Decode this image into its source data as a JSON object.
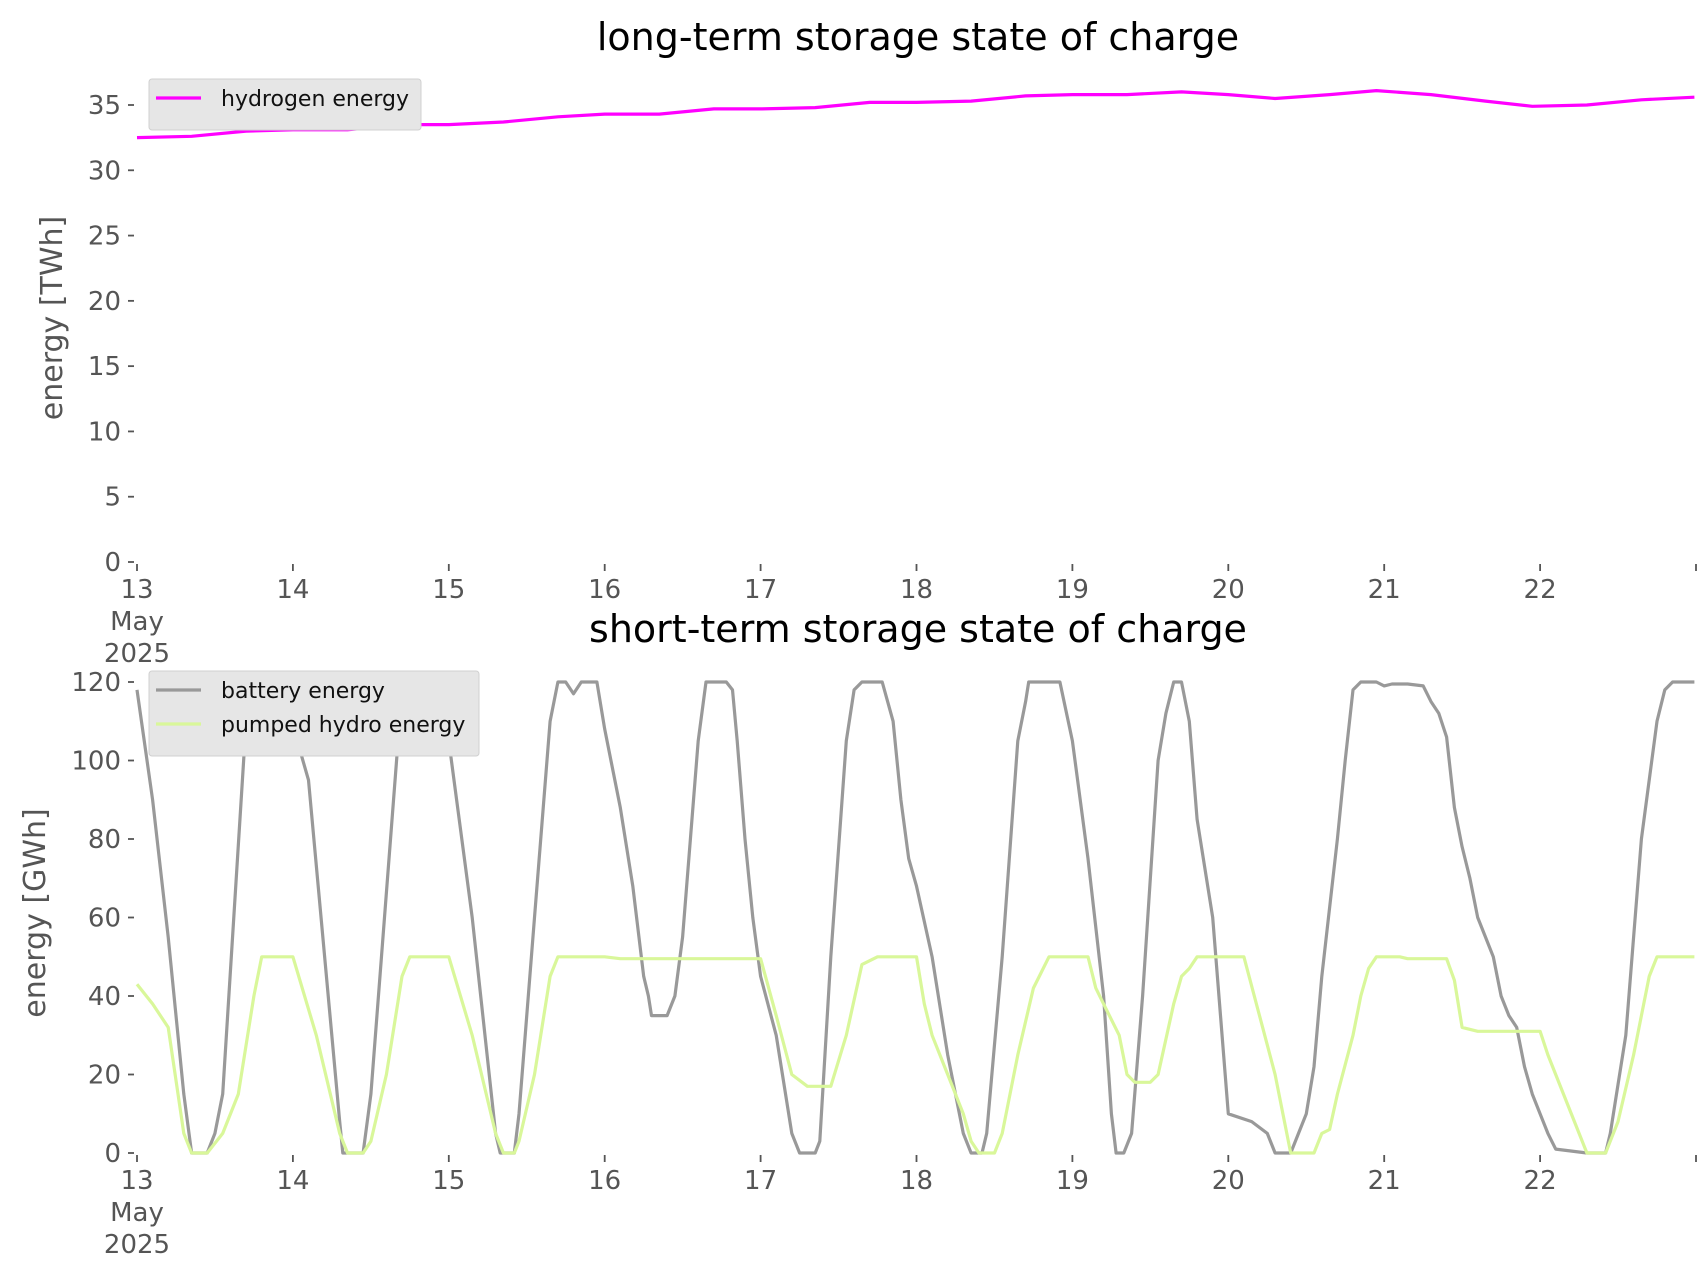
{
  "chart_data": [
    {
      "type": "line",
      "title": "long-term storage state of charge",
      "xlabel": "",
      "ylabel": "energy [TWh]",
      "ylim": [
        0,
        37
      ],
      "yticks": [
        0,
        5,
        10,
        15,
        20,
        25,
        30,
        35
      ],
      "xlim": [
        "2025-05-13T00:00",
        "2025-05-22T23:00"
      ],
      "xticks": [
        "13",
        "14",
        "15",
        "16",
        "17",
        "18",
        "19",
        "20",
        "21",
        "22"
      ],
      "xtick_first_extra": [
        "May",
        "2025"
      ],
      "legend": "top-left",
      "grid": false,
      "x_unit": "day of May 2025",
      "series": [
        {
          "name": "hydrogen energy",
          "color": "#ff00ff",
          "points": [
            [
              13.0,
              32.5
            ],
            [
              13.35,
              32.6
            ],
            [
              13.7,
              33.0
            ],
            [
              14.0,
              33.1
            ],
            [
              14.35,
              33.1
            ],
            [
              14.7,
              33.5
            ],
            [
              15.0,
              33.5
            ],
            [
              15.35,
              33.7
            ],
            [
              15.7,
              34.1
            ],
            [
              16.0,
              34.3
            ],
            [
              16.35,
              34.3
            ],
            [
              16.7,
              34.7
            ],
            [
              17.0,
              34.7
            ],
            [
              17.35,
              34.8
            ],
            [
              17.7,
              35.2
            ],
            [
              18.0,
              35.2
            ],
            [
              18.35,
              35.3
            ],
            [
              18.7,
              35.7
            ],
            [
              19.0,
              35.8
            ],
            [
              19.35,
              35.8
            ],
            [
              19.7,
              36.0
            ],
            [
              20.0,
              35.8
            ],
            [
              20.3,
              35.5
            ],
            [
              20.65,
              35.8
            ],
            [
              20.95,
              36.1
            ],
            [
              21.3,
              35.8
            ],
            [
              21.65,
              35.3
            ],
            [
              21.95,
              34.9
            ],
            [
              22.3,
              35.0
            ],
            [
              22.65,
              35.4
            ],
            [
              22.99,
              35.6
            ]
          ]
        }
      ]
    },
    {
      "type": "line",
      "title": "short-term storage state of charge",
      "xlabel": "",
      "ylabel": "energy [GWh]",
      "ylim": [
        0,
        120
      ],
      "yticks": [
        0,
        20,
        40,
        60,
        80,
        100,
        120
      ],
      "xlim": [
        "2025-05-13T00:00",
        "2025-05-22T23:00"
      ],
      "xticks": [
        "13",
        "14",
        "15",
        "16",
        "17",
        "18",
        "19",
        "20",
        "21",
        "22"
      ],
      "xtick_first_extra": [
        "May",
        "2025"
      ],
      "legend": "top-left",
      "grid": false,
      "x_unit": "day of May 2025",
      "series": [
        {
          "name": "battery energy",
          "color": "#999999",
          "points": [
            [
              13.0,
              118
            ],
            [
              13.1,
              90
            ],
            [
              13.2,
              55
            ],
            [
              13.3,
              15
            ],
            [
              13.35,
              0
            ],
            [
              13.45,
              0
            ],
            [
              13.5,
              5
            ],
            [
              13.55,
              15
            ],
            [
              13.7,
              110
            ],
            [
              13.75,
              120
            ],
            [
              13.92,
              120
            ],
            [
              14.1,
              95
            ],
            [
              14.3,
              8
            ],
            [
              14.32,
              0
            ],
            [
              14.45,
              0
            ],
            [
              14.5,
              15
            ],
            [
              14.7,
              118
            ],
            [
              14.75,
              120
            ],
            [
              14.88,
              120
            ],
            [
              15.0,
              105
            ],
            [
              15.15,
              60
            ],
            [
              15.3,
              5
            ],
            [
              15.33,
              0
            ],
            [
              15.42,
              0
            ],
            [
              15.45,
              10
            ],
            [
              15.55,
              60
            ],
            [
              15.65,
              110
            ],
            [
              15.7,
              120
            ],
            [
              15.75,
              120
            ],
            [
              15.8,
              117
            ],
            [
              15.85,
              120
            ],
            [
              15.95,
              120
            ],
            [
              16.0,
              108
            ],
            [
              16.1,
              88
            ],
            [
              16.18,
              68
            ],
            [
              16.25,
              45
            ],
            [
              16.28,
              40
            ],
            [
              16.3,
              35
            ],
            [
              16.4,
              35
            ],
            [
              16.45,
              40
            ],
            [
              16.5,
              55
            ],
            [
              16.55,
              80
            ],
            [
              16.6,
              105
            ],
            [
              16.65,
              120
            ],
            [
              16.78,
              120
            ],
            [
              16.82,
              118
            ],
            [
              16.85,
              105
            ],
            [
              16.9,
              80
            ],
            [
              16.95,
              60
            ],
            [
              17.0,
              45
            ],
            [
              17.1,
              30
            ],
            [
              17.2,
              5
            ],
            [
              17.25,
              0
            ],
            [
              17.35,
              0
            ],
            [
              17.38,
              3
            ],
            [
              17.45,
              50
            ],
            [
              17.55,
              105
            ],
            [
              17.6,
              118
            ],
            [
              17.65,
              120
            ],
            [
              17.78,
              120
            ],
            [
              17.85,
              110
            ],
            [
              17.9,
              90
            ],
            [
              17.95,
              75
            ],
            [
              18.0,
              68
            ],
            [
              18.1,
              50
            ],
            [
              18.2,
              25
            ],
            [
              18.3,
              5
            ],
            [
              18.35,
              0
            ],
            [
              18.42,
              0
            ],
            [
              18.45,
              5
            ],
            [
              18.55,
              50
            ],
            [
              18.65,
              105
            ],
            [
              18.7,
              115
            ],
            [
              18.72,
              120
            ],
            [
              18.92,
              120
            ],
            [
              19.0,
              105
            ],
            [
              19.1,
              75
            ],
            [
              19.2,
              40
            ],
            [
              19.25,
              10
            ],
            [
              19.28,
              0
            ],
            [
              19.33,
              0
            ],
            [
              19.38,
              5
            ],
            [
              19.45,
              40
            ],
            [
              19.55,
              100
            ],
            [
              19.6,
              112
            ],
            [
              19.65,
              120
            ],
            [
              19.7,
              120
            ],
            [
              19.75,
              110
            ],
            [
              19.8,
              85
            ],
            [
              19.9,
              60
            ],
            [
              19.95,
              35
            ],
            [
              20.0,
              10
            ],
            [
              20.15,
              8
            ],
            [
              20.25,
              5
            ],
            [
              20.3,
              0
            ],
            [
              20.4,
              0
            ],
            [
              20.45,
              5
            ],
            [
              20.5,
              10
            ],
            [
              20.55,
              22
            ],
            [
              20.6,
              45
            ],
            [
              20.7,
              80
            ],
            [
              20.75,
              100
            ],
            [
              20.8,
              118
            ],
            [
              20.85,
              120
            ],
            [
              20.95,
              120
            ],
            [
              21.0,
              119
            ],
            [
              21.05,
              119.5
            ],
            [
              21.15,
              119.5
            ],
            [
              21.25,
              119
            ],
            [
              21.3,
              115
            ],
            [
              21.35,
              112
            ],
            [
              21.4,
              106
            ],
            [
              21.45,
              88
            ],
            [
              21.5,
              78
            ],
            [
              21.55,
              70
            ],
            [
              21.6,
              60
            ],
            [
              21.65,
              55
            ],
            [
              21.7,
              50
            ],
            [
              21.75,
              40
            ],
            [
              21.8,
              35
            ],
            [
              21.85,
              32
            ],
            [
              21.9,
              22
            ],
            [
              21.95,
              15
            ],
            [
              22.0,
              10
            ],
            [
              22.05,
              5
            ],
            [
              22.1,
              1
            ],
            [
              22.3,
              0
            ],
            [
              22.35,
              0
            ],
            [
              22.42,
              0
            ],
            [
              22.45,
              5
            ],
            [
              22.55,
              30
            ],
            [
              22.65,
              80
            ],
            [
              22.75,
              110
            ],
            [
              22.8,
              118
            ],
            [
              22.85,
              120
            ],
            [
              22.99,
              120
            ]
          ]
        },
        {
          "name": "pumped hydro energy",
          "color": "#d9f79a",
          "points": [
            [
              13.0,
              43
            ],
            [
              13.1,
              38
            ],
            [
              13.2,
              32
            ],
            [
              13.3,
              5
            ],
            [
              13.35,
              0
            ],
            [
              13.45,
              0
            ],
            [
              13.55,
              5
            ],
            [
              13.65,
              15
            ],
            [
              13.75,
              40
            ],
            [
              13.8,
              50
            ],
            [
              14.0,
              50
            ],
            [
              14.15,
              30
            ],
            [
              14.3,
              5
            ],
            [
              14.35,
              0
            ],
            [
              14.45,
              0
            ],
            [
              14.5,
              3
            ],
            [
              14.6,
              20
            ],
            [
              14.7,
              45
            ],
            [
              14.75,
              50
            ],
            [
              15.0,
              50
            ],
            [
              15.15,
              30
            ],
            [
              15.3,
              5
            ],
            [
              15.35,
              0
            ],
            [
              15.42,
              0
            ],
            [
              15.45,
              3
            ],
            [
              15.55,
              20
            ],
            [
              15.65,
              45
            ],
            [
              15.7,
              50
            ],
            [
              16.0,
              50
            ],
            [
              16.1,
              49.5
            ],
            [
              17.0,
              49.5
            ],
            [
              17.1,
              35
            ],
            [
              17.2,
              20
            ],
            [
              17.3,
              17
            ],
            [
              17.45,
              17
            ],
            [
              17.55,
              30
            ],
            [
              17.65,
              48
            ],
            [
              17.7,
              49
            ],
            [
              17.75,
              50
            ],
            [
              18.0,
              50
            ],
            [
              18.05,
              38
            ],
            [
              18.1,
              30
            ],
            [
              18.2,
              20
            ],
            [
              18.3,
              10
            ],
            [
              18.35,
              3
            ],
            [
              18.4,
              0
            ],
            [
              18.5,
              0
            ],
            [
              18.55,
              5
            ],
            [
              18.65,
              25
            ],
            [
              18.75,
              42
            ],
            [
              18.8,
              46
            ],
            [
              18.85,
              50
            ],
            [
              19.1,
              50
            ],
            [
              19.15,
              42
            ],
            [
              19.2,
              38
            ],
            [
              19.3,
              30
            ],
            [
              19.35,
              20
            ],
            [
              19.4,
              18
            ],
            [
              19.5,
              18
            ],
            [
              19.55,
              20
            ],
            [
              19.65,
              38
            ],
            [
              19.7,
              45
            ],
            [
              19.75,
              47
            ],
            [
              19.8,
              50
            ],
            [
              20.1,
              50
            ],
            [
              20.2,
              35
            ],
            [
              20.3,
              20
            ],
            [
              20.35,
              10
            ],
            [
              20.4,
              0
            ],
            [
              20.55,
              0
            ],
            [
              20.6,
              5
            ],
            [
              20.65,
              6
            ],
            [
              20.7,
              15
            ],
            [
              20.8,
              30
            ],
            [
              20.85,
              40
            ],
            [
              20.9,
              47
            ],
            [
              20.95,
              50
            ],
            [
              21.1,
              50
            ],
            [
              21.15,
              49.5
            ],
            [
              21.4,
              49.5
            ],
            [
              21.45,
              44
            ],
            [
              21.5,
              32
            ],
            [
              21.6,
              31
            ],
            [
              22.0,
              31
            ],
            [
              22.05,
              25
            ],
            [
              22.15,
              15
            ],
            [
              22.25,
              5
            ],
            [
              22.3,
              0
            ],
            [
              22.42,
              0
            ],
            [
              22.5,
              8
            ],
            [
              22.6,
              25
            ],
            [
              22.7,
              45
            ],
            [
              22.75,
              50
            ],
            [
              22.99,
              50
            ]
          ]
        }
      ]
    }
  ]
}
